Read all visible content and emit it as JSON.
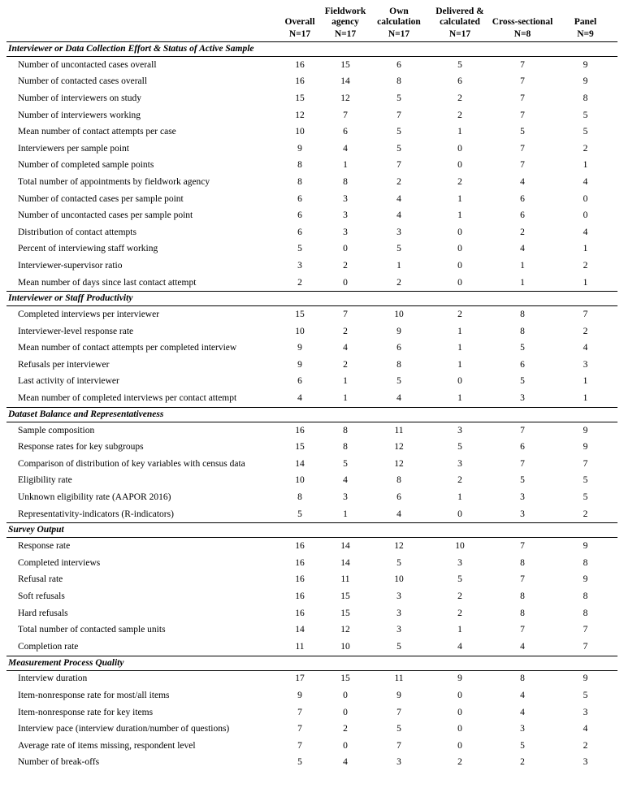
{
  "table": {
    "columns": [
      {
        "name": "Overall",
        "n": "N=17"
      },
      {
        "name": "Fieldwork agency",
        "n": "N=17"
      },
      {
        "name": "Own calculation",
        "n": "N=17"
      },
      {
        "name": "Delivered & calculated",
        "n": "N=17"
      },
      {
        "name": "Cross-sectional",
        "n": "N=8"
      },
      {
        "name": "Panel",
        "n": "N=9"
      }
    ],
    "sections": [
      {
        "title": "Interviewer or Data Collection Effort & Status of Active Sample",
        "rows": [
          {
            "label": "Number of uncontacted cases overall",
            "values": [
              16,
              15,
              6,
              5,
              7,
              9
            ]
          },
          {
            "label": "Number of contacted cases overall",
            "values": [
              16,
              14,
              8,
              6,
              7,
              9
            ]
          },
          {
            "label": "Number of interviewers on study",
            "values": [
              15,
              12,
              5,
              2,
              7,
              8
            ]
          },
          {
            "label": "Number of interviewers working",
            "values": [
              12,
              7,
              7,
              2,
              7,
              5
            ]
          },
          {
            "label": "Mean number of contact attempts per case",
            "values": [
              10,
              6,
              5,
              1,
              5,
              5
            ]
          },
          {
            "label": "Interviewers per sample point",
            "values": [
              9,
              4,
              5,
              0,
              7,
              2
            ]
          },
          {
            "label": "Number of completed sample points",
            "values": [
              8,
              1,
              7,
              0,
              7,
              1
            ]
          },
          {
            "label": "Total number of appointments by fieldwork agency",
            "values": [
              8,
              8,
              2,
              2,
              4,
              4
            ]
          },
          {
            "label": "Number of contacted cases per sample point",
            "values": [
              6,
              3,
              4,
              1,
              6,
              0
            ]
          },
          {
            "label": "Number of uncontacted cases per sample point",
            "values": [
              6,
              3,
              4,
              1,
              6,
              0
            ]
          },
          {
            "label": "Distribution of contact attempts",
            "values": [
              6,
              3,
              3,
              0,
              2,
              4
            ]
          },
          {
            "label": "Percent of interviewing staff working",
            "values": [
              5,
              0,
              5,
              0,
              4,
              1
            ]
          },
          {
            "label": "Interviewer-supervisor ratio",
            "values": [
              3,
              2,
              1,
              0,
              1,
              2
            ]
          },
          {
            "label": "Mean number of days since last contact attempt",
            "values": [
              2,
              0,
              2,
              0,
              1,
              1
            ]
          }
        ]
      },
      {
        "title": "Interviewer or Staff Productivity",
        "rows": [
          {
            "label": "Completed interviews per interviewer",
            "values": [
              15,
              7,
              10,
              2,
              8,
              7
            ]
          },
          {
            "label": "Interviewer-level response rate",
            "values": [
              10,
              2,
              9,
              1,
              8,
              2
            ]
          },
          {
            "label": "Mean number of contact attempts per completed interview",
            "values": [
              9,
              4,
              6,
              1,
              5,
              4
            ]
          },
          {
            "label": "Refusals per interviewer",
            "values": [
              9,
              2,
              8,
              1,
              6,
              3
            ]
          },
          {
            "label": "Last activity of interviewer",
            "values": [
              6,
              1,
              5,
              0,
              5,
              1
            ]
          },
          {
            "label": "Mean number of completed interviews per contact attempt",
            "values": [
              4,
              1,
              4,
              1,
              3,
              1
            ]
          }
        ]
      },
      {
        "title": "Dataset Balance and Representativeness",
        "rows": [
          {
            "label": "Sample composition",
            "values": [
              16,
              8,
              11,
              3,
              7,
              9
            ]
          },
          {
            "label": "Response rates for key subgroups",
            "values": [
              15,
              8,
              12,
              5,
              6,
              9
            ]
          },
          {
            "label": "Comparison of distribution of key variables with census data",
            "values": [
              14,
              5,
              12,
              3,
              7,
              7
            ]
          },
          {
            "label": "Eligibility rate",
            "values": [
              10,
              4,
              8,
              2,
              5,
              5
            ]
          },
          {
            "label": "Unknown eligibility rate (AAPOR 2016)",
            "values": [
              8,
              3,
              6,
              1,
              3,
              5
            ]
          },
          {
            "label": "Representativity-indicators (R-indicators)",
            "values": [
              5,
              1,
              4,
              0,
              3,
              2
            ]
          }
        ]
      },
      {
        "title": "Survey Output",
        "rows": [
          {
            "label": "Response rate",
            "values": [
              16,
              14,
              12,
              10,
              7,
              9
            ]
          },
          {
            "label": "Completed interviews",
            "values": [
              16,
              14,
              5,
              3,
              8,
              8
            ]
          },
          {
            "label": "Refusal rate",
            "values": [
              16,
              11,
              10,
              5,
              7,
              9
            ]
          },
          {
            "label": "Soft refusals",
            "values": [
              16,
              15,
              3,
              2,
              8,
              8
            ]
          },
          {
            "label": "Hard refusals",
            "values": [
              16,
              15,
              3,
              2,
              8,
              8
            ]
          },
          {
            "label": "Total number of contacted sample units",
            "values": [
              14,
              12,
              3,
              1,
              7,
              7
            ]
          },
          {
            "label": "Completion rate",
            "values": [
              11,
              10,
              5,
              4,
              4,
              7
            ]
          }
        ]
      },
      {
        "title": "Measurement Process Quality",
        "rows": [
          {
            "label": "Interview duration",
            "values": [
              17,
              15,
              11,
              9,
              8,
              9
            ]
          },
          {
            "label": "Item-nonresponse rate for most/all items",
            "values": [
              9,
              0,
              9,
              0,
              4,
              5
            ]
          },
          {
            "label": "Item-nonresponse rate for key items",
            "values": [
              7,
              0,
              7,
              0,
              4,
              3
            ]
          },
          {
            "label": "Interview pace (interview duration/number of questions)",
            "values": [
              7,
              2,
              5,
              0,
              3,
              4
            ]
          },
          {
            "label": "Average rate of items missing, respondent level",
            "values": [
              7,
              0,
              7,
              0,
              5,
              2
            ]
          },
          {
            "label": "Number of break-offs",
            "values": [
              5,
              4,
              3,
              2,
              2,
              3
            ]
          }
        ]
      }
    ]
  }
}
